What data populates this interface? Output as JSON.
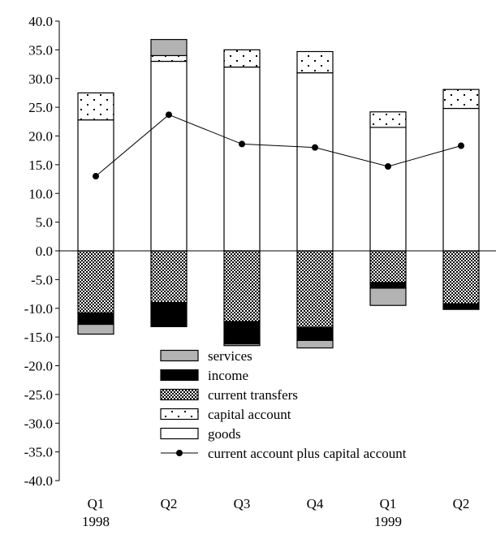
{
  "chart_data": {
    "type": "bar",
    "stacked": true,
    "title": "",
    "xlabel": "",
    "ylabel": "",
    "ylim": [
      -40,
      40
    ],
    "ytick_step": 5,
    "ytick_labels": [
      "40.0",
      "35.0",
      "30.0",
      "25.0",
      "20.0",
      "15.0",
      "10.0",
      "5.0",
      "0.0",
      "-5.0",
      "-10.0",
      "-15.0",
      "-20.0",
      "-25.0",
      "-30.0",
      "-35.0",
      "-40.0"
    ],
    "grid": false,
    "legend_position": "bottom-center",
    "categories": [
      "Q1",
      "Q2",
      "Q3",
      "Q4",
      "Q1",
      "Q2"
    ],
    "year_labels": [
      "1998",
      "",
      "",
      "",
      "1999",
      ""
    ],
    "series": [
      {
        "name": "goods",
        "pattern": "solid-white",
        "values": [
          22.8,
          33.0,
          32.0,
          31.0,
          21.5,
          24.8
        ]
      },
      {
        "name": "capital account",
        "pattern": "sparse-dots",
        "values": [
          4.7,
          1.0,
          3.0,
          3.7,
          2.7,
          3.3
        ]
      },
      {
        "name": "current transfers",
        "pattern": "dense-dots",
        "values": [
          -10.8,
          -9.0,
          -12.3,
          -13.3,
          -5.5,
          -9.2
        ]
      },
      {
        "name": "income",
        "pattern": "solid-black",
        "values": [
          -2.0,
          -4.2,
          -3.9,
          -2.3,
          -1.0,
          -1.0
        ]
      },
      {
        "name": "services",
        "pattern": "solid-gray",
        "values": [
          -1.7,
          0,
          -0.3,
          -1.3,
          -3.0,
          0
        ]
      },
      {
        "name": "services",
        "pattern": "solid-gray",
        "values": [
          0,
          2.8,
          0,
          0,
          0,
          0
        ]
      },
      {
        "name": "current account plus capital account",
        "type": "line",
        "values": [
          13.0,
          23.7,
          18.6,
          18.0,
          14.7,
          18.3
        ]
      }
    ],
    "legend": [
      {
        "label": "services",
        "pattern": "solid-gray"
      },
      {
        "label": "income",
        "pattern": "solid-black"
      },
      {
        "label": "current transfers",
        "pattern": "dense-dots"
      },
      {
        "label": "capital account",
        "pattern": "sparse-dots"
      },
      {
        "label": "goods",
        "pattern": "solid-white"
      },
      {
        "label": "current account plus capital account",
        "pattern": "line-marker"
      }
    ],
    "colors": {
      "services": "#b3b3b3",
      "income": "#000000",
      "goods": "#ffffff",
      "line": "#000000"
    }
  }
}
